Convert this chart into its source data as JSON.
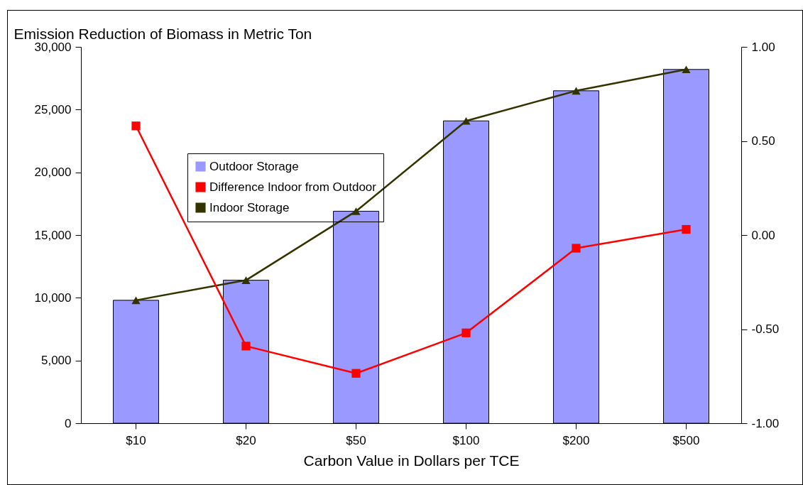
{
  "chart_data": {
    "type": "bar",
    "ylabel": "Emission Reduction of Biomass in Metric Ton",
    "xlabel": "Carbon Value in Dollars per TCE",
    "categories": [
      "$10",
      "$20",
      "$50",
      "$100",
      "$200",
      "$500"
    ],
    "series": [
      {
        "name": "Outdoor Storage",
        "color": "#9999ff",
        "values": [
          9800,
          11400,
          16900,
          24100,
          26500,
          28200
        ]
      },
      {
        "name": "Difference Indoor from Outdoor",
        "type": "line",
        "axis": "y2",
        "marker": "square",
        "color": "#ff0000",
        "values": [
          0.58,
          -0.59,
          -0.735,
          -0.52,
          -0.07,
          0.03
        ]
      },
      {
        "name": "Indoor Storage",
        "type": "line",
        "marker": "triangle",
        "color": "#333300",
        "values": [
          9800,
          11400,
          16900,
          24100,
          26500,
          28200
        ]
      }
    ],
    "ylim": [
      0,
      30000
    ],
    "yticks": [
      0,
      {
        "value": 5000,
        "label": "5,000"
      },
      {
        "value": 10000,
        "label": "10,000"
      },
      {
        "value": 15000,
        "label": "15,000"
      },
      {
        "value": 20000,
        "label": "20,000"
      },
      {
        "value": 25000,
        "label": "25,000"
      },
      {
        "value": 30000,
        "label": "30,000"
      }
    ],
    "y2lim": [
      -1,
      1
    ],
    "y2ticks": [
      {
        "value": -1,
        "label": "-1.00"
      },
      {
        "value": -0.5,
        "label": "-0.50"
      },
      {
        "value": 0,
        "label": "0.00"
      },
      {
        "value": 0.5,
        "label": "0.50"
      },
      {
        "value": 1,
        "label": "1.00"
      }
    ],
    "legend": "top left",
    "grid": false
  }
}
